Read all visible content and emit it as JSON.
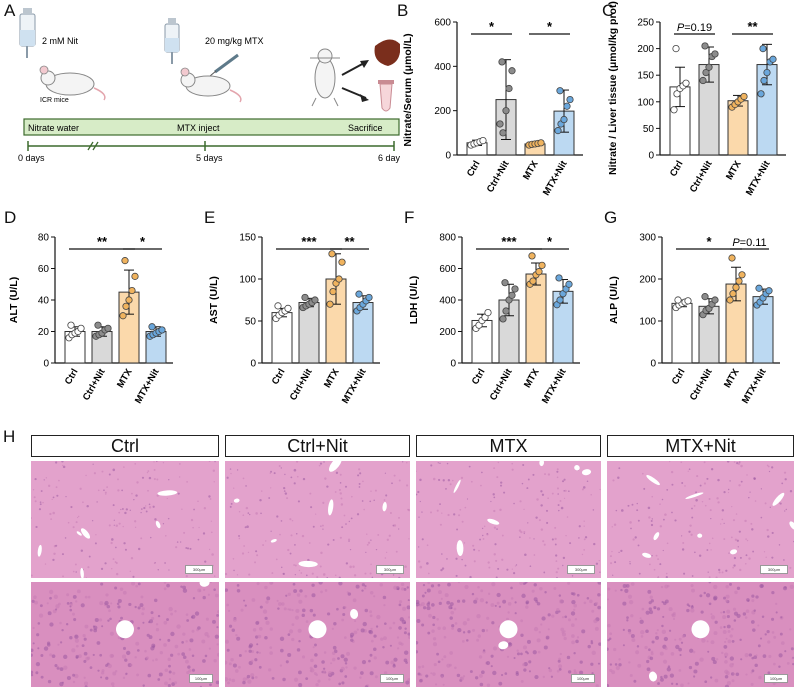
{
  "panel_labels": {
    "A": "A",
    "B": "B",
    "C": "C",
    "D": "D",
    "E": "E",
    "F": "F",
    "G": "G",
    "H": "H"
  },
  "schematic": {
    "nit_label": "2 mM Nit",
    "mice_label": "ICR mice",
    "mtx_label": "20 mg/kg MTX",
    "timeline_labels": [
      "Nitrate water",
      "MTX inject",
      "Sacrifice"
    ],
    "day_labels": [
      "0 days",
      "5 days",
      "6 days"
    ],
    "bar_color": "#d7ecc7",
    "bar_border": "#3c6a2d"
  },
  "group_colors": [
    "#ffffff",
    "#d9d9d9",
    "#fbd9ab",
    "#bcd9f2"
  ],
  "group_edge_colors": [
    "#333333",
    "#333333",
    "#333333",
    "#333333"
  ],
  "chart_data": [
    {
      "type": "bar",
      "id": "B",
      "ylabel": "Nitrate/Serum (μmol/L)",
      "categories": [
        "Ctrl",
        "Ctrl+Nit",
        "MTX",
        "MTX+Nit"
      ],
      "values": [
        55,
        250,
        50,
        198
      ],
      "errors": [
        12,
        180,
        8,
        95
      ],
      "ylim": [
        0,
        600
      ],
      "yticks": [
        0,
        200,
        400,
        600
      ],
      "points": [
        [
          45,
          50,
          55,
          60,
          65
        ],
        [
          140,
          100,
          200,
          300,
          380,
          420
        ],
        [
          45,
          48,
          50,
          52,
          55
        ],
        [
          110,
          140,
          160,
          220,
          250,
          290
        ]
      ],
      "sig": [
        {
          "from": 0,
          "to": 1,
          "label": "*"
        },
        {
          "from": 2,
          "to": 3,
          "label": "*"
        }
      ]
    },
    {
      "type": "bar",
      "id": "C",
      "ylabel": "Nitrate / Liver tissue (μmol/kg prot)",
      "categories": [
        "Ctrl",
        "Ctrl+Nit",
        "MTX",
        "MTX+Nit"
      ],
      "values": [
        128,
        170,
        102,
        170
      ],
      "errors": [
        37,
        33,
        10,
        38
      ],
      "ylim": [
        0,
        250
      ],
      "yticks": [
        0,
        50,
        100,
        150,
        200,
        250
      ],
      "points": [
        [
          85,
          115,
          125,
          130,
          135,
          200
        ],
        [
          140,
          155,
          165,
          185,
          190,
          205
        ],
        [
          90,
          95,
          100,
          105,
          110
        ],
        [
          115,
          140,
          155,
          175,
          180,
          200
        ]
      ],
      "sig": [
        {
          "from": 0,
          "to": 1,
          "label": "P=0.19",
          "italicP": true
        },
        {
          "from": 2,
          "to": 3,
          "label": "**"
        }
      ]
    },
    {
      "type": "bar",
      "id": "D",
      "ylabel": "ALT (U/L)",
      "categories": [
        "Ctrl",
        "Ctrl+Nit",
        "MTX",
        "MTX+Nit"
      ],
      "values": [
        20,
        20,
        45,
        20
      ],
      "errors": [
        3,
        3,
        14,
        3
      ],
      "ylim": [
        0,
        80
      ],
      "yticks": [
        0,
        20,
        40,
        60,
        80
      ],
      "points": [
        [
          16,
          18,
          19,
          20,
          22,
          24
        ],
        [
          17,
          18,
          19,
          21,
          22,
          24
        ],
        [
          30,
          36,
          40,
          46,
          55,
          65
        ],
        [
          17,
          18,
          19,
          20,
          21,
          23
        ]
      ],
      "sig": [
        {
          "from": 0,
          "to": 2,
          "label": "**"
        },
        {
          "from": 2,
          "to": 3,
          "label": "*"
        }
      ]
    },
    {
      "type": "bar",
      "id": "E",
      "ylabel": "AST (U/L)",
      "categories": [
        "Ctrl",
        "Ctrl+Nit",
        "MTX",
        "MTX+Nit"
      ],
      "values": [
        60,
        72,
        100,
        72
      ],
      "errors": [
        5,
        5,
        30,
        8
      ],
      "ylim": [
        0,
        150
      ],
      "yticks": [
        0,
        50,
        100,
        150
      ],
      "points": [
        [
          53,
          57,
          60,
          62,
          65,
          68
        ],
        [
          66,
          68,
          70,
          72,
          75,
          78
        ],
        [
          70,
          85,
          95,
          100,
          120,
          130
        ],
        [
          62,
          66,
          70,
          74,
          78,
          82
        ]
      ],
      "sig": [
        {
          "from": 0,
          "to": 2,
          "label": "***"
        },
        {
          "from": 2,
          "to": 3,
          "label": "**"
        }
      ]
    },
    {
      "type": "bar",
      "id": "F",
      "ylabel": "LDH (U/L)",
      "categories": [
        "Ctrl",
        "Ctrl+Nit",
        "MTX",
        "MTX+Nit"
      ],
      "values": [
        270,
        400,
        565,
        455
      ],
      "errors": [
        40,
        100,
        70,
        75
      ],
      "ylim": [
        0,
        800
      ],
      "yticks": [
        0,
        200,
        400,
        600,
        800
      ],
      "points": [
        [
          220,
          240,
          270,
          290,
          320
        ],
        [
          280,
          330,
          400,
          430,
          470,
          510
        ],
        [
          500,
          520,
          560,
          580,
          620,
          680
        ],
        [
          370,
          400,
          440,
          470,
          500,
          540
        ]
      ],
      "sig": [
        {
          "from": 0,
          "to": 2,
          "label": "***"
        },
        {
          "from": 2,
          "to": 3,
          "label": "*"
        }
      ]
    },
    {
      "type": "bar",
      "id": "G",
      "ylabel": "ALP (U/L)",
      "categories": [
        "Ctrl",
        "Ctrl+Nit",
        "MTX",
        "MTX+Nit"
      ],
      "values": [
        142,
        135,
        188,
        158
      ],
      "errors": [
        8,
        18,
        40,
        18
      ],
      "ylim": [
        0,
        300
      ],
      "yticks": [
        0,
        100,
        200,
        300
      ],
      "points": [
        [
          132,
          138,
          142,
          145,
          148,
          150
        ],
        [
          115,
          125,
          130,
          140,
          150,
          158
        ],
        [
          150,
          165,
          180,
          195,
          210,
          250
        ],
        [
          138,
          145,
          155,
          165,
          172,
          178
        ]
      ],
      "sig": [
        {
          "from": 0,
          "to": 2,
          "label": "*"
        },
        {
          "from": 2,
          "to": 3,
          "label": "P=0.11",
          "italicP": true
        }
      ]
    }
  ],
  "histology": {
    "groups": [
      "Ctrl",
      "Ctrl+Nit",
      "MTX",
      "MTX+Nit"
    ],
    "scale_top": "300μm",
    "scale_bottom": "100μm"
  }
}
